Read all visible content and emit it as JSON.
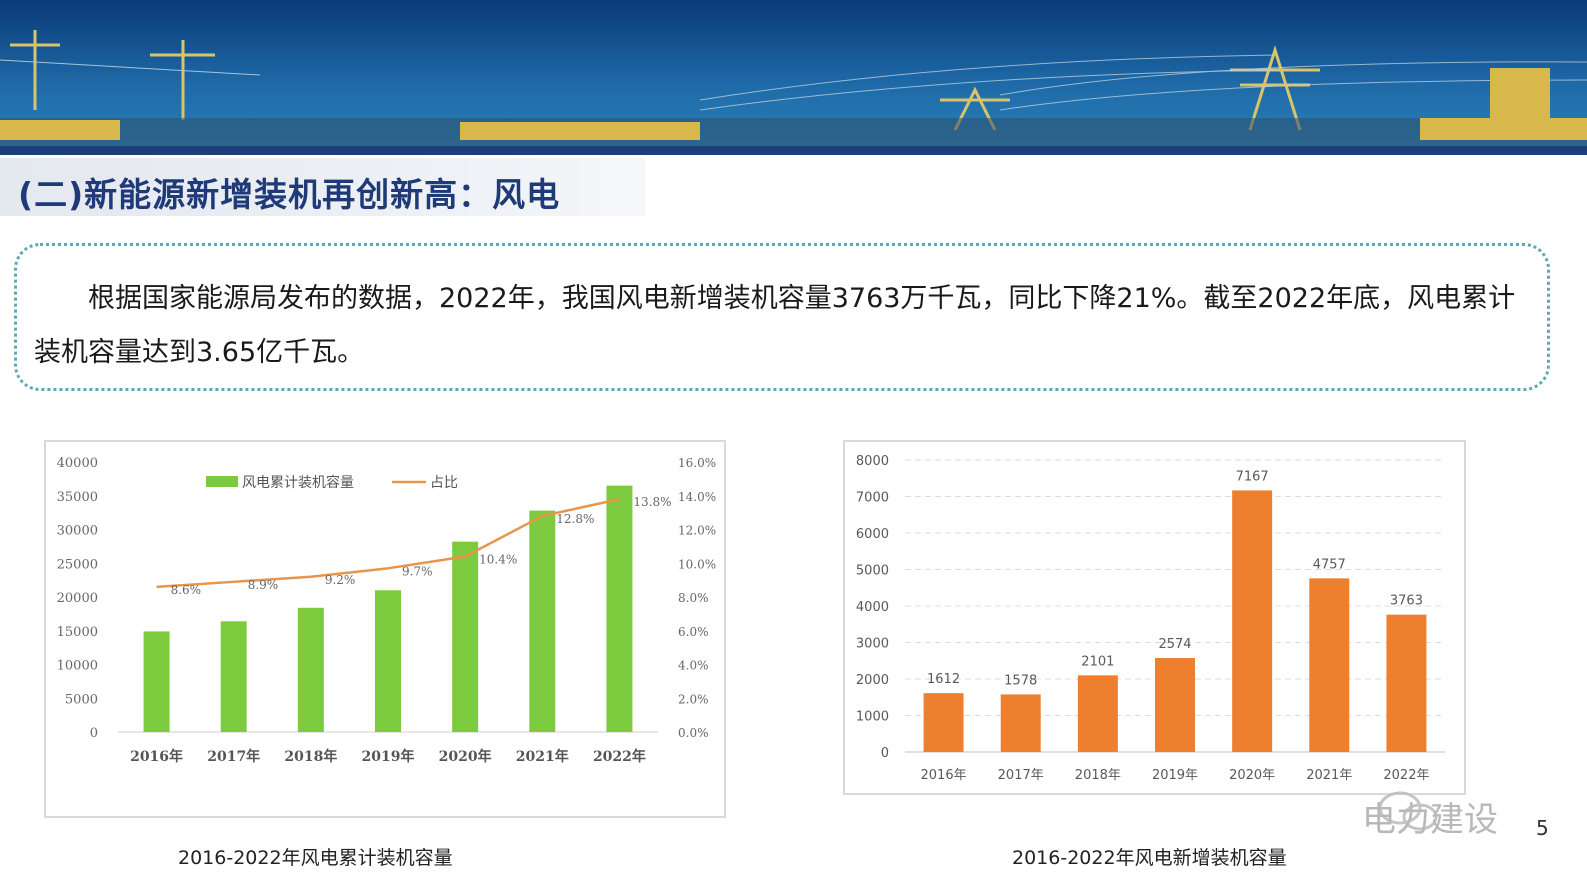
{
  "header": {
    "title": "(二)新能源新增装机再创新高：风电"
  },
  "intro": {
    "text": "根据国家能源局发布的数据，2022年，我国风电新增装机容量3763万千瓦，同比下降21%。截至2022年底，风电累计装机容量达到3.65亿千瓦。"
  },
  "colors": {
    "banner_dark": "#0a2f66",
    "banner_mid": "#1a5fa0",
    "title_text": "#1f3a78",
    "green_bar": "#7ccb3f",
    "orange_line": "#e8944a",
    "orange_bar": "#ee7f2e",
    "dotted_border": "#5aa9b4"
  },
  "chart_data": [
    {
      "type": "bar",
      "caption": "2016-2022年风电累计装机容量",
      "categories": [
        "2016年",
        "2017年",
        "2018年",
        "2019年",
        "2020年",
        "2021年",
        "2022年"
      ],
      "y_ticks": [
        "0",
        "5000",
        "10000",
        "15000",
        "20000",
        "25000",
        "30000",
        "35000",
        "40000"
      ],
      "y2_ticks": [
        "0.0%",
        "2.0%",
        "4.0%",
        "6.0%",
        "8.0%",
        "10.0%",
        "12.0%",
        "14.0%",
        "16.0%"
      ],
      "ylim": [
        0,
        40000
      ],
      "y2lim": [
        0,
        16
      ],
      "legend": "top",
      "grid": false,
      "series": [
        {
          "name": "风电累计装机容量",
          "type": "bar",
          "color": "#7ccb3f",
          "values": [
            14900,
            16400,
            18400,
            21000,
            28200,
            32800,
            36500
          ]
        },
        {
          "name": "占比",
          "type": "line",
          "axis": "right",
          "color": "#e8944a",
          "values": [
            8.6,
            8.9,
            9.2,
            9.7,
            10.4,
            12.8,
            13.8
          ],
          "labels": [
            "8.6%",
            "8.9%",
            "9.2%",
            "9.7%",
            "10.4%",
            "12.8%",
            "13.8%"
          ]
        }
      ]
    },
    {
      "type": "bar",
      "caption": "2016-2022年风电新增装机容量",
      "categories": [
        "2016年",
        "2017年",
        "2018年",
        "2019年",
        "2020年",
        "2021年",
        "2022年"
      ],
      "y_ticks": [
        "0",
        "1000",
        "2000",
        "3000",
        "4000",
        "5000",
        "6000",
        "7000",
        "8000"
      ],
      "ylim": [
        0,
        8000
      ],
      "grid": true,
      "series": [
        {
          "type": "bar",
          "color": "#ee7f2e",
          "values": [
            1612,
            1578,
            2101,
            2574,
            7167,
            4757,
            3763
          ],
          "labels": [
            "1612",
            "1578",
            "2101",
            "2574",
            "7167",
            "4757",
            "3763"
          ]
        }
      ]
    }
  ],
  "footer": {
    "watermark": "电力建设",
    "page_number": "5"
  }
}
